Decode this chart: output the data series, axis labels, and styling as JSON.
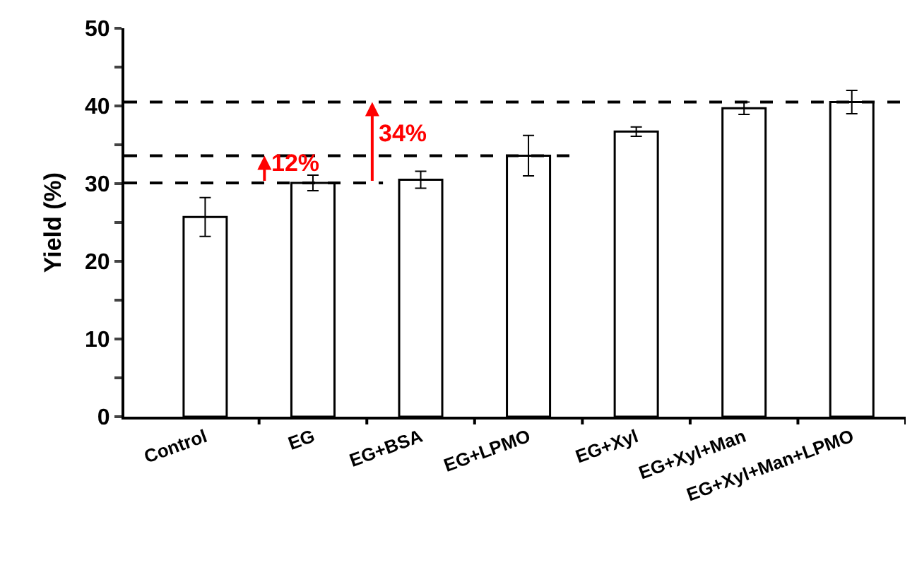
{
  "chart_data": {
    "type": "bar",
    "ylabel": "Yield (%)",
    "categories": [
      "Control",
      "EG",
      "EG+BSA",
      "EG+LPMO",
      "EG+Xyl",
      "EG+Xyl+Man",
      "EG+Xyl+Man+LPMO"
    ],
    "values": [
      25.7,
      30.1,
      30.5,
      33.6,
      36.7,
      39.7,
      40.5
    ],
    "errors": [
      2.5,
      1.0,
      1.1,
      2.6,
      0.6,
      0.8,
      1.5
    ],
    "color": "#ffffff",
    "ylim": [
      0,
      50
    ],
    "yticks": [
      0,
      {
        "value": 5,
        "label": null
      },
      10,
      {
        "value": 15,
        "label": null
      },
      20,
      {
        "value": 25,
        "label": null
      },
      30,
      {
        "value": 35,
        "label": null
      },
      40,
      {
        "value": 45,
        "label": null
      },
      50
    ],
    "ref_lines": [
      {
        "axis": "y",
        "value": 30.1,
        "color": "#000000",
        "line_style": "dashed"
      },
      {
        "axis": "y",
        "value": 33.6,
        "color": "#000000",
        "line_style": "dashed"
      },
      {
        "axis": "y",
        "value": 40.5,
        "color": "#000000",
        "line_style": "dashed"
      }
    ],
    "annotations": [
      "12%",
      "34%"
    ]
  }
}
